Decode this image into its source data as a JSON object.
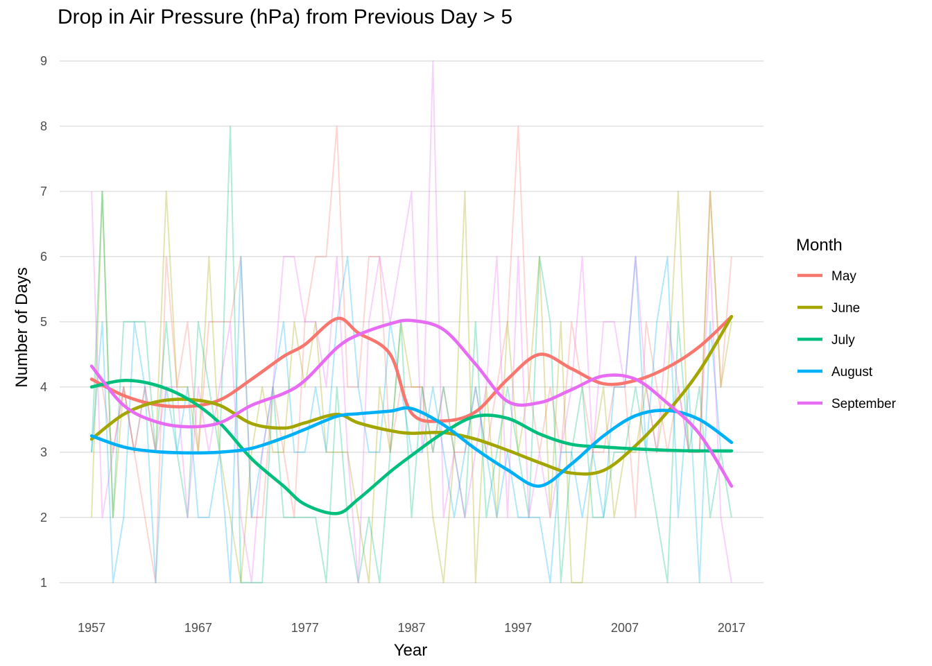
{
  "chart_data": {
    "type": "line",
    "title": "Drop in Air Pressure (hPa) from Previous Day > 5",
    "xlabel": "Year",
    "ylabel": "Number of Days",
    "xlim": [
      1954,
      2020
    ],
    "ylim": [
      0.7,
      9.35
    ],
    "x_ticks": [
      1957,
      1967,
      1977,
      1987,
      1997,
      2007,
      2017
    ],
    "y_ticks": [
      1,
      2,
      3,
      4,
      5,
      6,
      7,
      8,
      9
    ],
    "grid": "horizontal",
    "legend": {
      "title": "Month",
      "placement": "right"
    },
    "series": [
      {
        "name": "May",
        "color": "#F8766D",
        "raw_x": [
          1957,
          1958,
          1959,
          1960,
          1961,
          1962,
          1963,
          1964,
          1965,
          1966,
          1967,
          1968,
          1969,
          1970,
          1971,
          1972,
          1973,
          1974,
          1975,
          1976,
          1977,
          1978,
          1979,
          1980,
          1981,
          1982,
          1983,
          1984,
          1985,
          1986,
          1987,
          1988,
          1989,
          1990,
          1991,
          1992,
          1993,
          1994,
          1995,
          1996,
          1997,
          1998,
          1999,
          2000,
          2001,
          2002,
          2003,
          2004,
          2005,
          2006,
          2007,
          2008,
          2009,
          2010,
          2011,
          2012,
          2013,
          2014,
          2015,
          2016,
          2017
        ],
        "raw_y": [
          4,
          4,
          3,
          4,
          3,
          2,
          1,
          6,
          4,
          5,
          3,
          5,
          5,
          5,
          6,
          2,
          2,
          4,
          3,
          2,
          5,
          6,
          6,
          8,
          4,
          4,
          6,
          6,
          3,
          4,
          4,
          4,
          3,
          4,
          3,
          3,
          4,
          3,
          4,
          5,
          8,
          4,
          3,
          4,
          3,
          5,
          4,
          3,
          3,
          4,
          4,
          2,
          5,
          4,
          3,
          4,
          3,
          3,
          7,
          4,
          6
        ],
        "smooth_x": [
          1957,
          1960,
          1963,
          1966,
          1969,
          1972,
          1975,
          1977,
          1980,
          1982,
          1985,
          1987,
          1990,
          1993,
          1996,
          1999,
          2002,
          2005,
          2008,
          2011,
          2014,
          2017
        ],
        "smooth_y": [
          4.12,
          3.87,
          3.73,
          3.7,
          3.8,
          4.12,
          4.47,
          4.65,
          5.05,
          4.83,
          4.5,
          3.6,
          3.48,
          3.62,
          4.12,
          4.5,
          4.28,
          4.05,
          4.1,
          4.3,
          4.62,
          5.08
        ]
      },
      {
        "name": "June",
        "color": "#A3A500",
        "raw_x": [
          1957,
          1958,
          1959,
          1960,
          1961,
          1962,
          1963,
          1964,
          1965,
          1966,
          1967,
          1968,
          1969,
          1970,
          1971,
          1972,
          1973,
          1974,
          1975,
          1976,
          1977,
          1978,
          1979,
          1980,
          1981,
          1982,
          1983,
          1984,
          1985,
          1986,
          1987,
          1988,
          1989,
          1990,
          1991,
          1992,
          1993,
          1994,
          1995,
          1996,
          1997,
          1998,
          1999,
          2000,
          2001,
          2002,
          2003,
          2004,
          2005,
          2006,
          2007,
          2008,
          2009,
          2010,
          2011,
          2012,
          2013,
          2014,
          2015,
          2016,
          2017
        ],
        "raw_y": [
          2,
          7,
          2,
          4,
          3,
          4,
          3,
          7,
          4,
          4,
          3,
          6,
          3,
          2,
          1,
          3,
          4,
          3,
          3,
          5,
          4,
          5,
          3,
          3,
          3,
          2,
          1,
          4,
          3,
          5,
          4,
          4,
          2,
          1,
          3,
          7,
          1,
          4,
          2,
          5,
          3,
          4,
          6,
          2,
          5,
          1,
          1,
          3,
          4,
          2,
          3,
          3,
          4,
          3,
          4,
          7,
          3,
          3,
          7,
          4,
          5
        ],
        "smooth_x": [
          1957,
          1960,
          1963,
          1966,
          1969,
          1972,
          1975,
          1977,
          1980,
          1982,
          1985,
          1987,
          1990,
          1993,
          1996,
          1999,
          2002,
          2005,
          2008,
          2011,
          2014,
          2017
        ],
        "smooth_y": [
          3.2,
          3.58,
          3.77,
          3.81,
          3.72,
          3.44,
          3.37,
          3.45,
          3.58,
          3.45,
          3.33,
          3.29,
          3.3,
          3.2,
          3.03,
          2.84,
          2.68,
          2.72,
          3.1,
          3.62,
          4.25,
          5.08
        ]
      },
      {
        "name": "July",
        "color": "#00BF7D",
        "raw_x": [
          1957,
          1958,
          1959,
          1960,
          1961,
          1962,
          1963,
          1964,
          1965,
          1966,
          1967,
          1968,
          1969,
          1970,
          1971,
          1972,
          1973,
          1974,
          1975,
          1976,
          1977,
          1978,
          1979,
          1980,
          1981,
          1982,
          1983,
          1984,
          1985,
          1986,
          1987,
          1988,
          1989,
          1990,
          1991,
          1992,
          1993,
          1994,
          1995,
          1996,
          1997,
          1998,
          1999,
          2000,
          2001,
          2002,
          2003,
          2004,
          2005,
          2006,
          2007,
          2008,
          2009,
          2010,
          2011,
          2012,
          2013,
          2014,
          2015,
          2016,
          2017
        ],
        "raw_y": [
          3,
          7,
          2,
          5,
          5,
          5,
          3,
          5,
          3,
          2,
          5,
          4,
          3,
          8,
          1,
          1,
          1,
          4,
          2,
          2,
          2,
          2,
          1,
          4,
          2,
          1,
          2,
          1,
          3,
          5,
          2,
          4,
          3,
          4,
          3,
          2,
          5,
          2,
          3,
          4,
          3,
          2,
          6,
          5,
          1,
          3,
          4,
          2,
          2,
          3,
          3,
          4,
          3,
          2,
          1,
          5,
          3,
          4,
          2,
          3,
          2
        ],
        "smooth_x": [
          1957,
          1960,
          1963,
          1966,
          1969,
          1972,
          1975,
          1977,
          1980,
          1982,
          1985,
          1987,
          1990,
          1993,
          1996,
          1999,
          2002,
          2005,
          2008,
          2011,
          2014,
          2017
        ],
        "smooth_y": [
          4.0,
          4.1,
          4.03,
          3.82,
          3.45,
          2.9,
          2.48,
          2.2,
          2.06,
          2.28,
          2.7,
          2.95,
          3.3,
          3.55,
          3.52,
          3.28,
          3.12,
          3.08,
          3.05,
          3.03,
          3.02,
          3.02
        ]
      },
      {
        "name": "August",
        "color": "#00B0F6",
        "raw_x": [
          1957,
          1958,
          1959,
          1960,
          1961,
          1962,
          1963,
          1964,
          1965,
          1966,
          1967,
          1968,
          1969,
          1970,
          1971,
          1972,
          1973,
          1974,
          1975,
          1976,
          1977,
          1978,
          1979,
          1980,
          1981,
          1982,
          1983,
          1984,
          1985,
          1986,
          1987,
          1988,
          1989,
          1990,
          1991,
          1992,
          1993,
          1994,
          1995,
          1996,
          1997,
          1998,
          1999,
          2000,
          2001,
          2002,
          2003,
          2004,
          2005,
          2006,
          2007,
          2008,
          2009,
          2010,
          2011,
          2012,
          2013,
          2014,
          2015,
          2016,
          2017
        ],
        "raw_y": [
          3,
          5,
          1,
          2,
          5,
          4,
          1,
          4,
          3,
          4,
          2,
          2,
          3,
          1,
          6,
          2,
          3,
          4,
          5,
          3,
          3,
          4,
          3,
          5,
          6,
          4,
          3,
          3,
          5,
          4,
          3,
          3,
          4,
          3,
          2,
          3,
          4,
          3,
          2,
          3,
          2,
          2,
          2,
          1,
          3,
          3,
          2,
          3,
          2,
          4,
          4,
          6,
          3,
          5,
          6,
          2,
          4,
          1,
          5,
          3,
          3
        ],
        "smooth_x": [
          1957,
          1960,
          1963,
          1966,
          1969,
          1972,
          1975,
          1977,
          1980,
          1982,
          1985,
          1987,
          1990,
          1993,
          1996,
          1999,
          2002,
          2005,
          2008,
          2011,
          2014,
          2017
        ],
        "smooth_y": [
          3.25,
          3.08,
          3.01,
          2.99,
          3.0,
          3.06,
          3.22,
          3.35,
          3.55,
          3.59,
          3.63,
          3.67,
          3.42,
          3.05,
          2.73,
          2.48,
          2.82,
          3.25,
          3.56,
          3.64,
          3.5,
          3.15
        ]
      },
      {
        "name": "September",
        "color": "#E76BF3",
        "raw_x": [
          1957,
          1958,
          1959,
          1960,
          1961,
          1962,
          1963,
          1964,
          1965,
          1966,
          1967,
          1968,
          1969,
          1970,
          1971,
          1972,
          1973,
          1974,
          1975,
          1976,
          1977,
          1978,
          1979,
          1980,
          1981,
          1982,
          1983,
          1984,
          1985,
          1986,
          1987,
          1988,
          1989,
          1990,
          1991,
          1992,
          1993,
          1994,
          1995,
          1996,
          1997,
          1998,
          1999,
          2000,
          2001,
          2002,
          2003,
          2004,
          2005,
          2006,
          2007,
          2008,
          2009,
          2010,
          2011,
          2012,
          2013,
          2014,
          2015,
          2016,
          2017
        ],
        "raw_y": [
          7,
          2,
          3,
          4,
          3,
          4,
          3,
          4,
          4,
          2,
          4,
          3,
          4,
          5,
          2,
          1,
          3,
          4,
          6,
          6,
          5,
          5,
          4,
          6,
          3,
          1,
          5,
          6,
          5,
          6,
          7,
          3,
          9,
          2,
          3,
          2,
          3,
          4,
          6,
          2,
          6,
          2,
          3,
          2,
          3,
          4,
          6,
          3,
          5,
          5,
          4,
          6,
          4,
          3,
          5,
          4,
          3,
          3,
          6,
          2,
          1
        ],
        "smooth_x": [
          1957,
          1960,
          1963,
          1966,
          1969,
          1972,
          1975,
          1977,
          1980,
          1982,
          1985,
          1987,
          1990,
          1993,
          1996,
          1999,
          2002,
          2005,
          2008,
          2011,
          2014,
          2017
        ],
        "smooth_y": [
          4.32,
          3.72,
          3.47,
          3.39,
          3.45,
          3.72,
          3.9,
          4.1,
          4.6,
          4.8,
          4.97,
          5.02,
          4.88,
          4.35,
          3.78,
          3.76,
          3.96,
          4.17,
          4.12,
          3.75,
          3.28,
          2.48
        ]
      }
    ]
  }
}
